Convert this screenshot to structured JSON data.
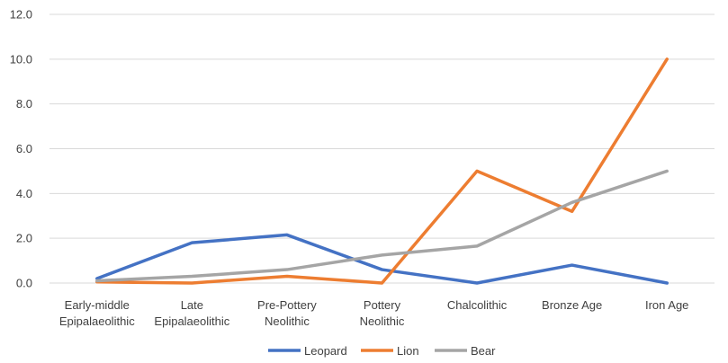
{
  "chart_data": {
    "type": "line",
    "title": "",
    "xlabel": "",
    "ylabel": "",
    "categories": [
      [
        "Early-middle",
        "Epipalaeolithic"
      ],
      [
        "Late",
        "Epipalaeolithic"
      ],
      [
        "Pre-Pottery",
        "Neolithic"
      ],
      [
        "Pottery",
        "Neolithic"
      ],
      [
        "Chalcolithic"
      ],
      [
        "Bronze Age"
      ],
      [
        "Iron Age"
      ]
    ],
    "ylim": [
      0,
      12
    ],
    "y_ticks": [
      "0.0",
      "2.0",
      "4.0",
      "6.0",
      "8.0",
      "10.0",
      "12.0"
    ],
    "y_tick_values": [
      0,
      2,
      4,
      6,
      8,
      10,
      12
    ],
    "grid": true,
    "legend_position": "bottom",
    "series": [
      {
        "name": "Leopard",
        "color": "#4472c4",
        "values": [
          0.2,
          1.8,
          2.15,
          0.6,
          0.0,
          0.8,
          0.0
        ]
      },
      {
        "name": "Lion",
        "color": "#ed7d31",
        "values": [
          0.05,
          0.0,
          0.3,
          0.0,
          5.0,
          3.2,
          10.0
        ]
      },
      {
        "name": "Bear",
        "color": "#a5a5a5",
        "values": [
          0.1,
          0.3,
          0.6,
          1.25,
          1.65,
          3.6,
          5.0
        ]
      }
    ]
  }
}
